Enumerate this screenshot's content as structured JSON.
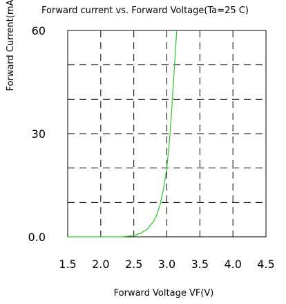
{
  "chart_data": {
    "type": "line",
    "title": "Forward current vs. Forward Voltage(Ta=25  C)",
    "xlabel": "Forward Voltage VF(V)",
    "ylabel": "Forward Current(mA)",
    "xlim": [
      1.5,
      4.5
    ],
    "ylim": [
      0,
      60
    ],
    "x_ticks": [
      "1.5",
      "2.0",
      "2.5",
      "3.0",
      "3.5",
      "4.0",
      "4.5"
    ],
    "y_ticks": [
      "0.0",
      "30",
      "60"
    ],
    "grid": true,
    "grid_style": "dashed",
    "series": [
      {
        "color": "#33cc33",
        "x": [
          2.3,
          2.4,
          2.5,
          2.6,
          2.7,
          2.8,
          2.85,
          2.9,
          2.95,
          3.0,
          3.05,
          3.1,
          3.15
        ],
        "y": [
          0,
          0.15,
          0.4,
          1.0,
          2.2,
          4.5,
          6.5,
          9.5,
          14,
          20,
          30,
          45,
          60
        ]
      }
    ]
  }
}
